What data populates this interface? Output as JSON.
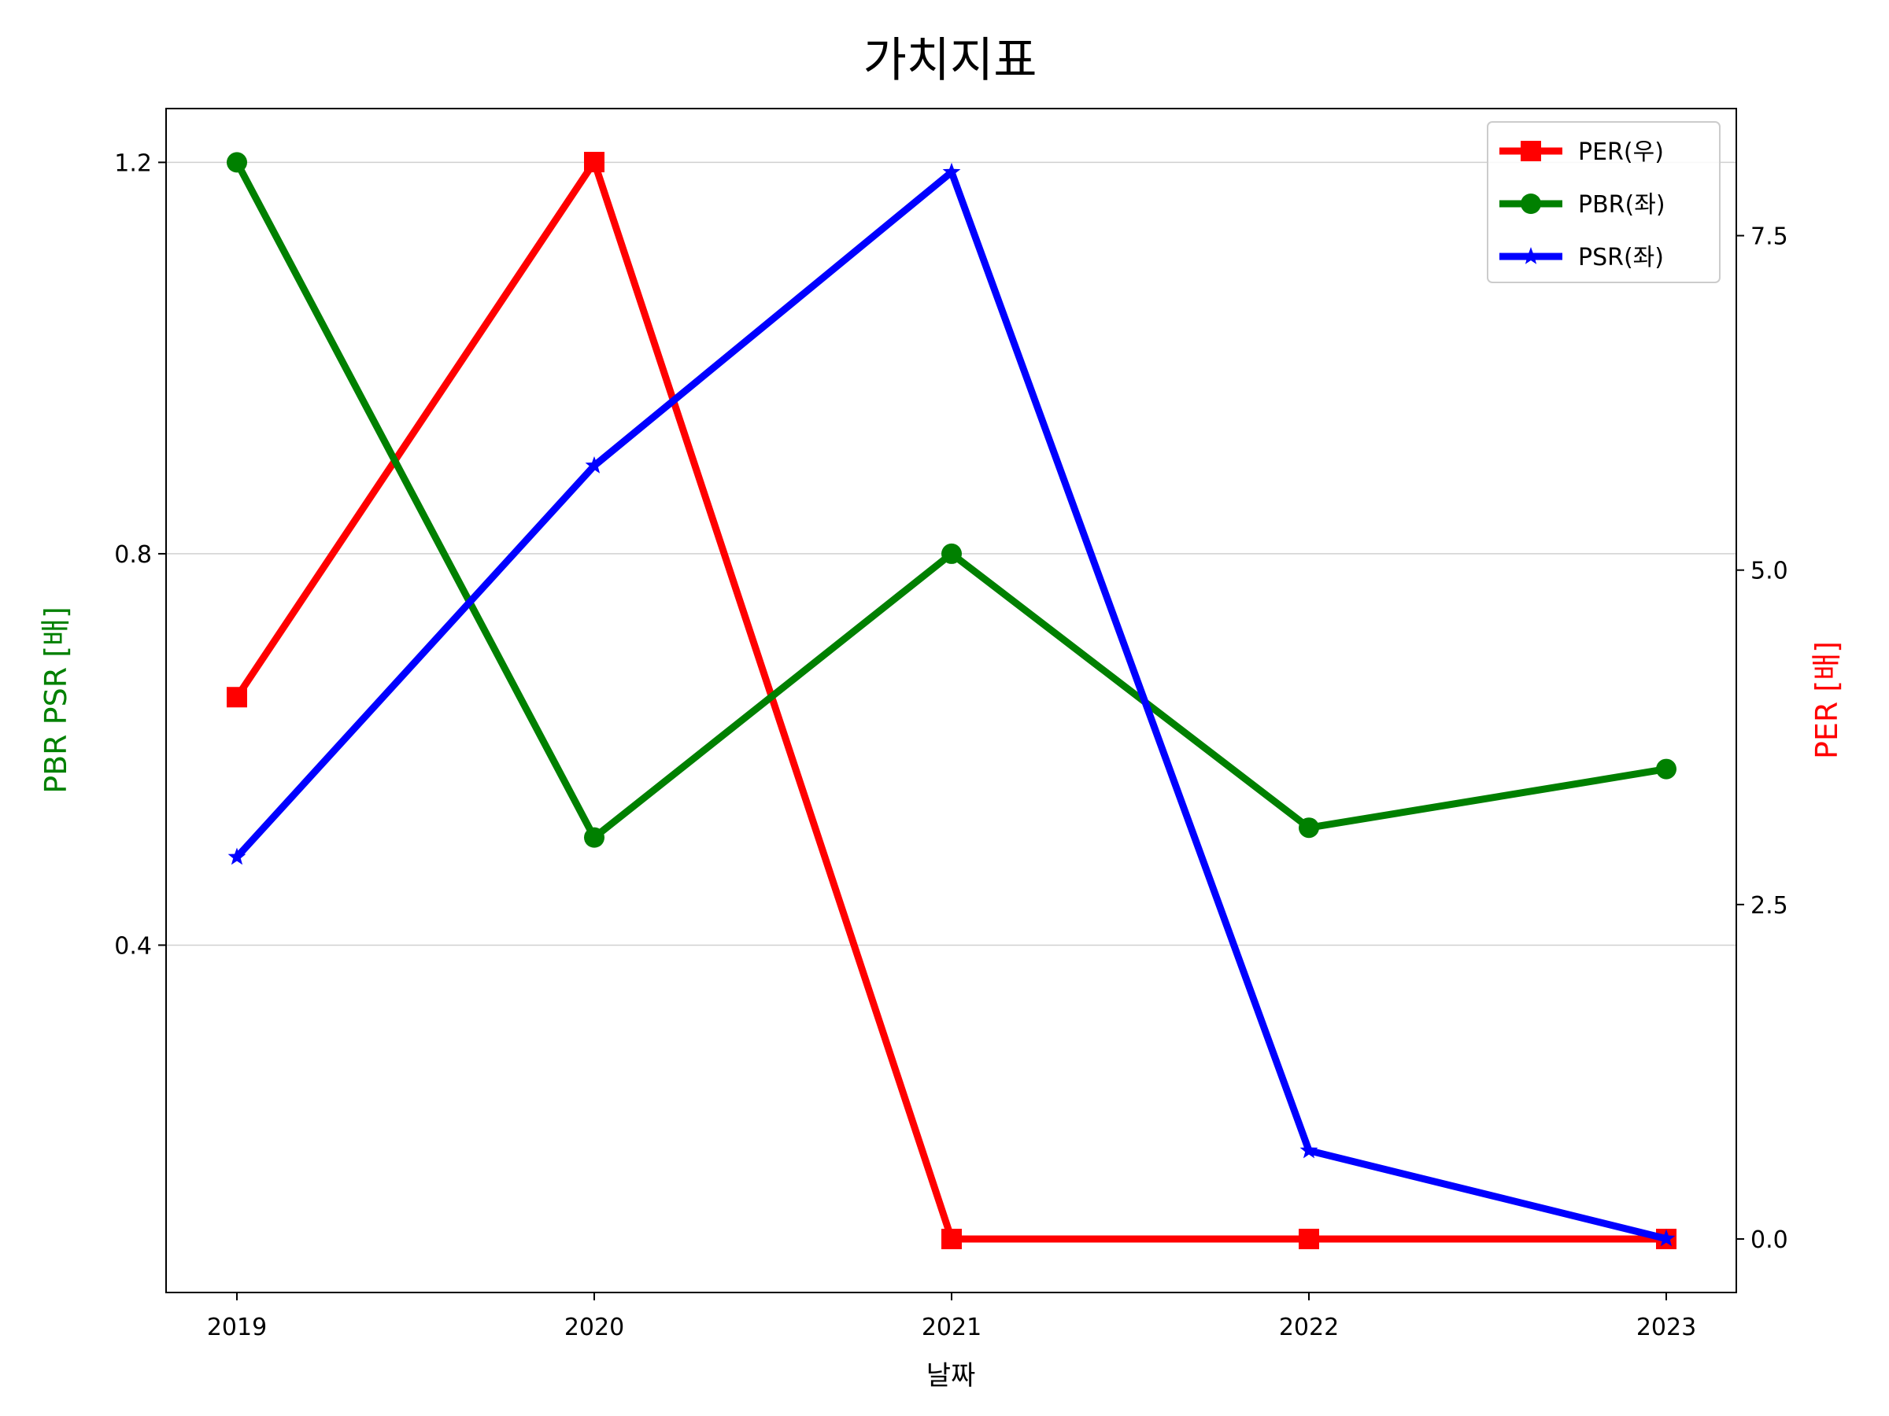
{
  "chart_data": {
    "type": "line",
    "title": "가치지표",
    "xlabel": "날짜",
    "ylabel_left": "PBR PSR [배]",
    "ylabel_right": "PER [배]",
    "categories": [
      "2019",
      "2020",
      "2021",
      "2022",
      "2023"
    ],
    "left_axis": {
      "ylim": [
        0.045,
        1.255
      ],
      "ticks": [
        "0.4",
        "0.8",
        "1.2"
      ],
      "grid": true
    },
    "right_axis": {
      "ylim": [
        -0.4,
        8.45
      ],
      "ticks": [
        "0.0",
        "2.5",
        "5.0",
        "7.5"
      ]
    },
    "legend_position": "upper right",
    "series": [
      {
        "name": "PER(우)",
        "axis": "right",
        "color": "#ff0000",
        "marker": "square",
        "values": [
          4.05,
          8.05,
          0.0,
          0.0,
          0.0
        ]
      },
      {
        "name": "PBR(좌)",
        "axis": "left",
        "color": "#008000",
        "marker": "circle",
        "values": [
          1.2,
          0.51,
          0.8,
          0.52,
          0.58
        ]
      },
      {
        "name": "PSR(좌)",
        "axis": "left",
        "color": "#0000ff",
        "marker": "star",
        "values": [
          0.49,
          0.89,
          1.19,
          0.19,
          0.1
        ]
      }
    ]
  }
}
